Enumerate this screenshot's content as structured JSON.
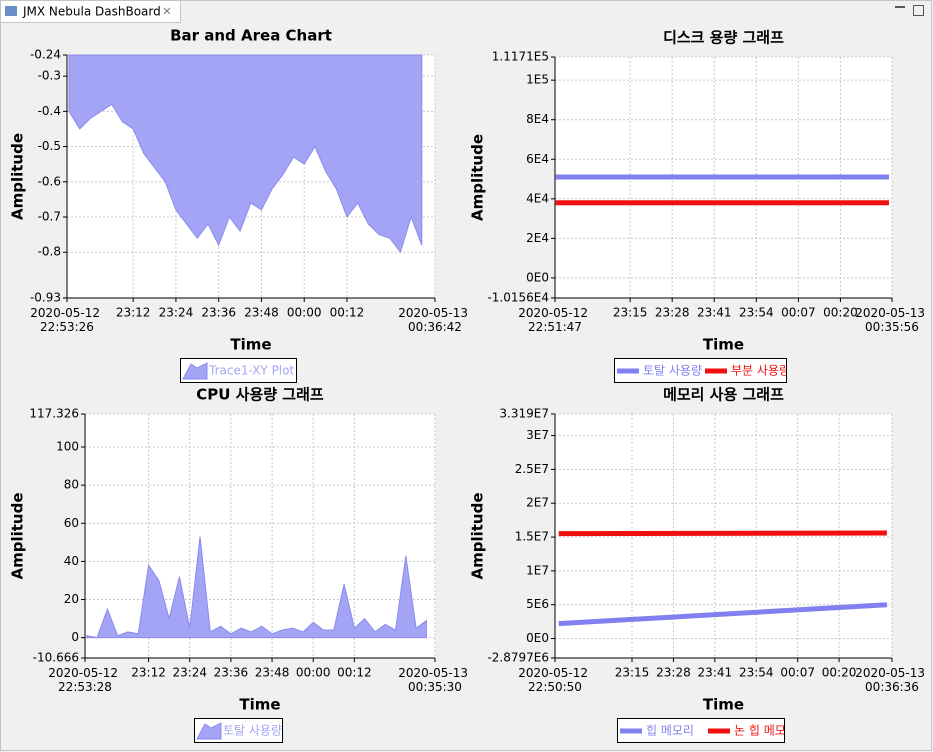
{
  "tab": {
    "title": "JMX Nebula DashBoard"
  },
  "chart_data": [
    {
      "type": "area",
      "title": "Bar and Area Chart",
      "x_label": "Time",
      "y_label": "Amplitude",
      "xlim": [
        "2020-05-12T22:53:26",
        "2020-05-13T00:36:42"
      ],
      "xticks": [
        {
          "value": "2020-05-12T22:53:26",
          "label": "2020-05-12 22:53:26"
        },
        {
          "value": "2020-05-12T23:12:00",
          "label": "23:12"
        },
        {
          "value": "2020-05-12T23:24:00",
          "label": "23:24"
        },
        {
          "value": "2020-05-12T23:36:00",
          "label": "23:36"
        },
        {
          "value": "2020-05-12T23:48:00",
          "label": "23:48"
        },
        {
          "value": "2020-05-13T00:00:00",
          "label": "00:00"
        },
        {
          "value": "2020-05-13T00:12:00",
          "label": "00:12"
        },
        {
          "value": "2020-05-13T00:36:42",
          "label": "2020-05-13 00:36:42"
        }
      ],
      "ylim": [
        -0.93,
        -0.24
      ],
      "yticks": [
        -0.93,
        -0.8,
        -0.7,
        -0.6,
        -0.5,
        -0.4,
        -0.3,
        -0.24
      ],
      "grid": true,
      "series": [
        {
          "name": "Trace1-XY Plot",
          "color": "#a4a4f6",
          "x": [
            "2020-05-12T22:54:00",
            "2020-05-12T22:57:00",
            "2020-05-12T23:00:00",
            "2020-05-12T23:03:00",
            "2020-05-12T23:06:00",
            "2020-05-12T23:09:00",
            "2020-05-12T23:12:00",
            "2020-05-12T23:15:00",
            "2020-05-12T23:18:00",
            "2020-05-12T23:21:00",
            "2020-05-12T23:24:00",
            "2020-05-12T23:27:00",
            "2020-05-12T23:30:00",
            "2020-05-12T23:33:00",
            "2020-05-12T23:36:00",
            "2020-05-12T23:39:00",
            "2020-05-12T23:42:00",
            "2020-05-12T23:45:00",
            "2020-05-12T23:48:00",
            "2020-05-12T23:51:00",
            "2020-05-12T23:54:00",
            "2020-05-12T23:57:00",
            "2020-05-13T00:00:00",
            "2020-05-13T00:03:00",
            "2020-05-13T00:06:00",
            "2020-05-13T00:09:00",
            "2020-05-13T00:12:00",
            "2020-05-13T00:15:00",
            "2020-05-13T00:18:00",
            "2020-05-13T00:21:00",
            "2020-05-13T00:24:00",
            "2020-05-13T00:27:00",
            "2020-05-13T00:30:00",
            "2020-05-13T00:33:00"
          ],
          "values": [
            -0.4,
            -0.45,
            -0.42,
            -0.4,
            -0.38,
            -0.43,
            -0.45,
            -0.52,
            -0.56,
            -0.6,
            -0.68,
            -0.72,
            -0.76,
            -0.72,
            -0.78,
            -0.7,
            -0.74,
            -0.66,
            -0.68,
            -0.62,
            -0.58,
            -0.53,
            -0.55,
            -0.5,
            -0.57,
            -0.62,
            -0.7,
            -0.66,
            -0.72,
            -0.75,
            -0.76,
            -0.8,
            -0.7,
            -0.78
          ]
        }
      ]
    },
    {
      "type": "line",
      "title": "디스크 용량 그래프",
      "x_label": "Time",
      "y_label": "Amplitude",
      "xlim": [
        "2020-05-12T22:51:47",
        "2020-05-13T00:35:56"
      ],
      "xticks": [
        {
          "value": "2020-05-12T22:51:47",
          "label": "2020-05-12 22:51:47"
        },
        {
          "value": "2020-05-12T23:15:00",
          "label": "23:15"
        },
        {
          "value": "2020-05-12T23:28:00",
          "label": "23:28"
        },
        {
          "value": "2020-05-12T23:41:00",
          "label": "23:41"
        },
        {
          "value": "2020-05-12T23:54:00",
          "label": "23:54"
        },
        {
          "value": "2020-05-13T00:07:00",
          "label": "00:07"
        },
        {
          "value": "2020-05-13T00:20:00",
          "label": "00:20"
        },
        {
          "value": "2020-05-13T00:35:56",
          "label": "2020-05-13 00:35:56"
        }
      ],
      "ylim": [
        -10156,
        111710
      ],
      "yticks": [
        {
          "value": -10156,
          "label": "-1.0156E4"
        },
        {
          "value": 0,
          "label": "0E0"
        },
        {
          "value": 20000,
          "label": "2E4"
        },
        {
          "value": 40000,
          "label": "4E4"
        },
        {
          "value": 60000,
          "label": "6E4"
        },
        {
          "value": 80000,
          "label": "8E4"
        },
        {
          "value": 100000,
          "label": "1E5"
        },
        {
          "value": 111710,
          "label": "1.1171E5"
        }
      ],
      "grid": true,
      "series": [
        {
          "name": "토탈 사용량",
          "color": "#8080f0",
          "x": [
            "2020-05-12T22:52:00",
            "2020-05-13T00:35:00"
          ],
          "values": [
            51000,
            51000
          ]
        },
        {
          "name": "부분 사용량",
          "color": "#f01010",
          "x": [
            "2020-05-12T22:52:00",
            "2020-05-13T00:35:00"
          ],
          "values": [
            38000,
            38000
          ]
        }
      ]
    },
    {
      "type": "area",
      "title": "CPU 사용량 그래프",
      "x_label": "Time",
      "y_label": "Amplitude",
      "xlim": [
        "2020-05-12T22:53:28",
        "2020-05-13T00:35:30"
      ],
      "xticks": [
        {
          "value": "2020-05-12T22:53:28",
          "label": "2020-05-12 22:53:28"
        },
        {
          "value": "2020-05-12T23:12:00",
          "label": "23:12"
        },
        {
          "value": "2020-05-12T23:24:00",
          "label": "23:24"
        },
        {
          "value": "2020-05-12T23:36:00",
          "label": "23:36"
        },
        {
          "value": "2020-05-12T23:48:00",
          "label": "23:48"
        },
        {
          "value": "2020-05-13T00:00:00",
          "label": "00:00"
        },
        {
          "value": "2020-05-13T00:12:00",
          "label": "00:12"
        },
        {
          "value": "2020-05-13T00:35:30",
          "label": "2020-05-13 00:35:30"
        }
      ],
      "ylim": [
        -10.666,
        117.326
      ],
      "yticks": [
        -10.666,
        0,
        20,
        40,
        60,
        80,
        100,
        117.326
      ],
      "grid": true,
      "series": [
        {
          "name": "토탈 사용량",
          "color": "#a4a4f6",
          "x": [
            "2020-05-12T22:54:00",
            "2020-05-12T22:57:00",
            "2020-05-12T23:00:00",
            "2020-05-12T23:03:00",
            "2020-05-12T23:06:00",
            "2020-05-12T23:09:00",
            "2020-05-12T23:12:00",
            "2020-05-12T23:15:00",
            "2020-05-12T23:18:00",
            "2020-05-12T23:21:00",
            "2020-05-12T23:24:00",
            "2020-05-12T23:27:00",
            "2020-05-12T23:30:00",
            "2020-05-12T23:33:00",
            "2020-05-12T23:36:00",
            "2020-05-12T23:39:00",
            "2020-05-12T23:42:00",
            "2020-05-12T23:45:00",
            "2020-05-12T23:48:00",
            "2020-05-12T23:51:00",
            "2020-05-12T23:54:00",
            "2020-05-12T23:57:00",
            "2020-05-13T00:00:00",
            "2020-05-13T00:03:00",
            "2020-05-13T00:06:00",
            "2020-05-13T00:09:00",
            "2020-05-13T00:12:00",
            "2020-05-13T00:15:00",
            "2020-05-13T00:18:00",
            "2020-05-13T00:21:00",
            "2020-05-13T00:24:00",
            "2020-05-13T00:27:00",
            "2020-05-13T00:30:00",
            "2020-05-13T00:33:00"
          ],
          "values": [
            1,
            0,
            15,
            1,
            3,
            2,
            38,
            30,
            10,
            32,
            5,
            53,
            3,
            6,
            2,
            5,
            3,
            6,
            2,
            4,
            5,
            3,
            8,
            4,
            4,
            28,
            5,
            10,
            3,
            7,
            4,
            43,
            5,
            9
          ]
        }
      ]
    },
    {
      "type": "line",
      "title": "메모리 사용 그래프",
      "x_label": "Time",
      "y_label": "Amplitude",
      "xlim": [
        "2020-05-12T22:50:50",
        "2020-05-13T00:36:36"
      ],
      "xticks": [
        {
          "value": "2020-05-12T22:50:50",
          "label": "2020-05-12 22:50:50"
        },
        {
          "value": "2020-05-12T23:15:00",
          "label": "23:15"
        },
        {
          "value": "2020-05-12T23:28:00",
          "label": "23:28"
        },
        {
          "value": "2020-05-12T23:41:00",
          "label": "23:41"
        },
        {
          "value": "2020-05-12T23:54:00",
          "label": "23:54"
        },
        {
          "value": "2020-05-13T00:07:00",
          "label": "00:07"
        },
        {
          "value": "2020-05-13T00:20:00",
          "label": "00:20"
        },
        {
          "value": "2020-05-13T00:36:36",
          "label": "2020-05-13 00:36:36"
        }
      ],
      "ylim": [
        -2879700,
        33190000
      ],
      "yticks": [
        {
          "value": -2879700,
          "label": "-2.8797E6"
        },
        {
          "value": 0,
          "label": "0E0"
        },
        {
          "value": 5000000,
          "label": "5E6"
        },
        {
          "value": 10000000,
          "label": "1E7"
        },
        {
          "value": 15000000,
          "label": "1.5E7"
        },
        {
          "value": 20000000,
          "label": "2E7"
        },
        {
          "value": 25000000,
          "label": "2.5E7"
        },
        {
          "value": 30000000,
          "label": "3E7"
        },
        {
          "value": 33190000,
          "label": "3.319E7"
        }
      ],
      "grid": true,
      "series": [
        {
          "name": "힙 메모리",
          "color": "#8080f0",
          "x": [
            "2020-05-12T22:52:00",
            "2020-05-13T00:35:00"
          ],
          "values": [
            2200000,
            5000000
          ]
        },
        {
          "name": "논 힙 메모리",
          "color": "#f01010",
          "x": [
            "2020-05-12T22:52:00",
            "2020-05-13T00:35:00"
          ],
          "values": [
            15500000,
            15600000
          ]
        }
      ]
    }
  ]
}
